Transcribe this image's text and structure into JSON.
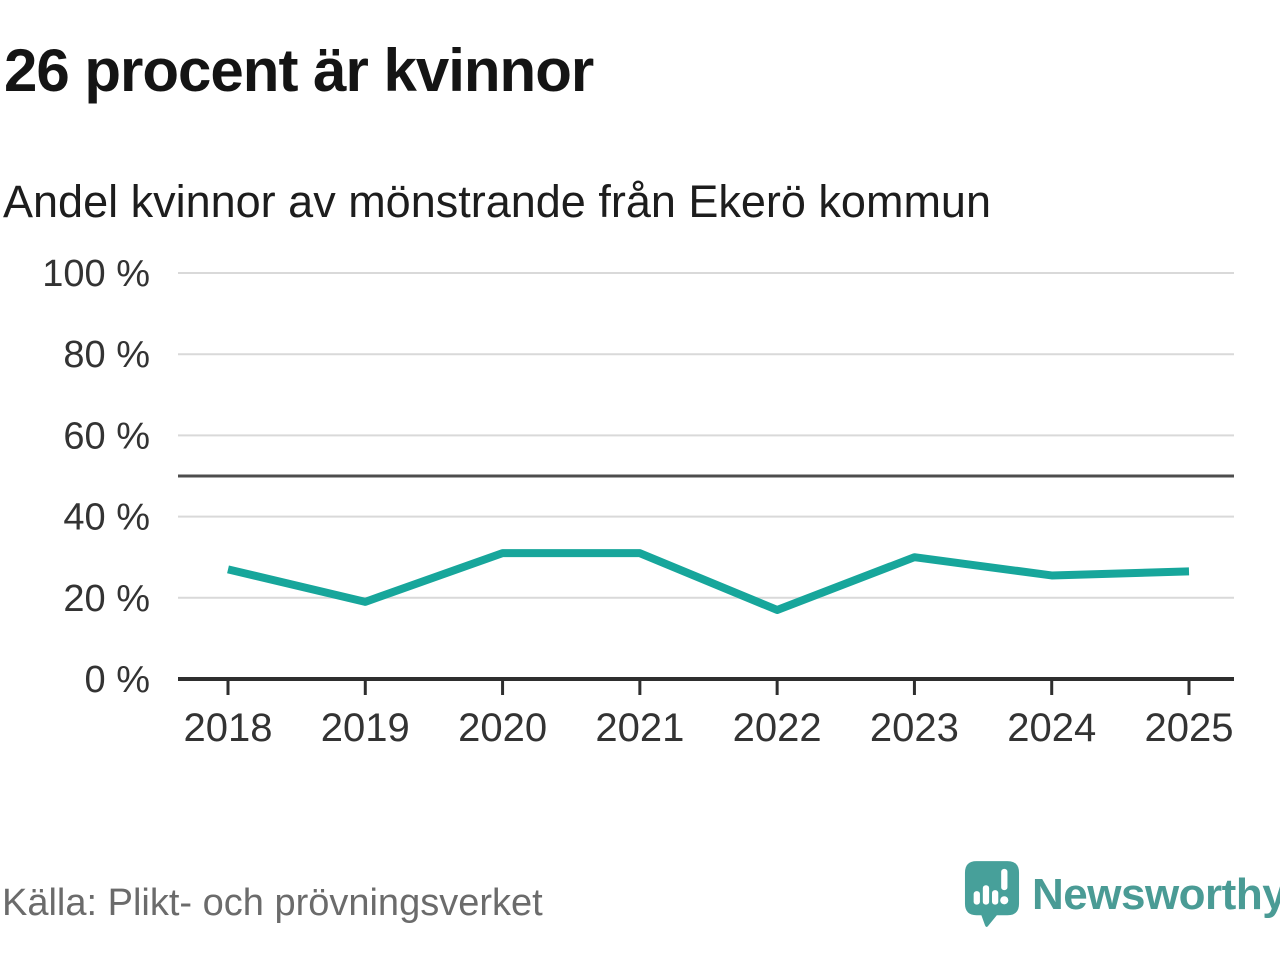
{
  "header": {
    "title": "26 procent är kvinnor",
    "subtitle": "Andel kvinnor av mönstrande från Ekerö kommun"
  },
  "chart_data": {
    "type": "line",
    "title": "Andel kvinnor av mönstrande från Ekerö kommun",
    "categories": [
      "2018",
      "2019",
      "2020",
      "2021",
      "2022",
      "2023",
      "2024",
      "2025"
    ],
    "series": [
      {
        "name": "Andel kvinnor",
        "values": [
          27,
          19,
          31,
          31,
          17,
          30,
          25.5,
          26.5
        ]
      }
    ],
    "xlabel": "",
    "ylabel": "",
    "ylim": [
      0,
      100
    ],
    "y_tick_values": [
      0,
      20,
      40,
      60,
      80,
      100
    ],
    "y_tick_labels": [
      "0 %",
      "20 %",
      "40 %",
      "60 %",
      "80 %",
      "100 %"
    ],
    "reference_line_value": 50,
    "grid": "horizontal",
    "legend": "none",
    "line_color": "#17a69b",
    "gridline_color": "#d9d9d9",
    "reference_line_color": "#4d4d4d",
    "axis_color": "#2e2e2e",
    "tick_label_color": "#333333"
  },
  "footer": {
    "source": "Källa: Plikt- och prövningsverket",
    "brand": "Newsworthy"
  },
  "colors": {
    "background": "#ffffff",
    "title": "#141414",
    "subtitle": "#1d1d1d",
    "source_text": "#6b6b6b",
    "brand_teal": "#4a9b95",
    "logo_bubble_teal": "#47a09a",
    "series_teal": "#17a69b"
  },
  "icons": {
    "logo": "newsworthy-speech-bubble-barchart-icon"
  }
}
